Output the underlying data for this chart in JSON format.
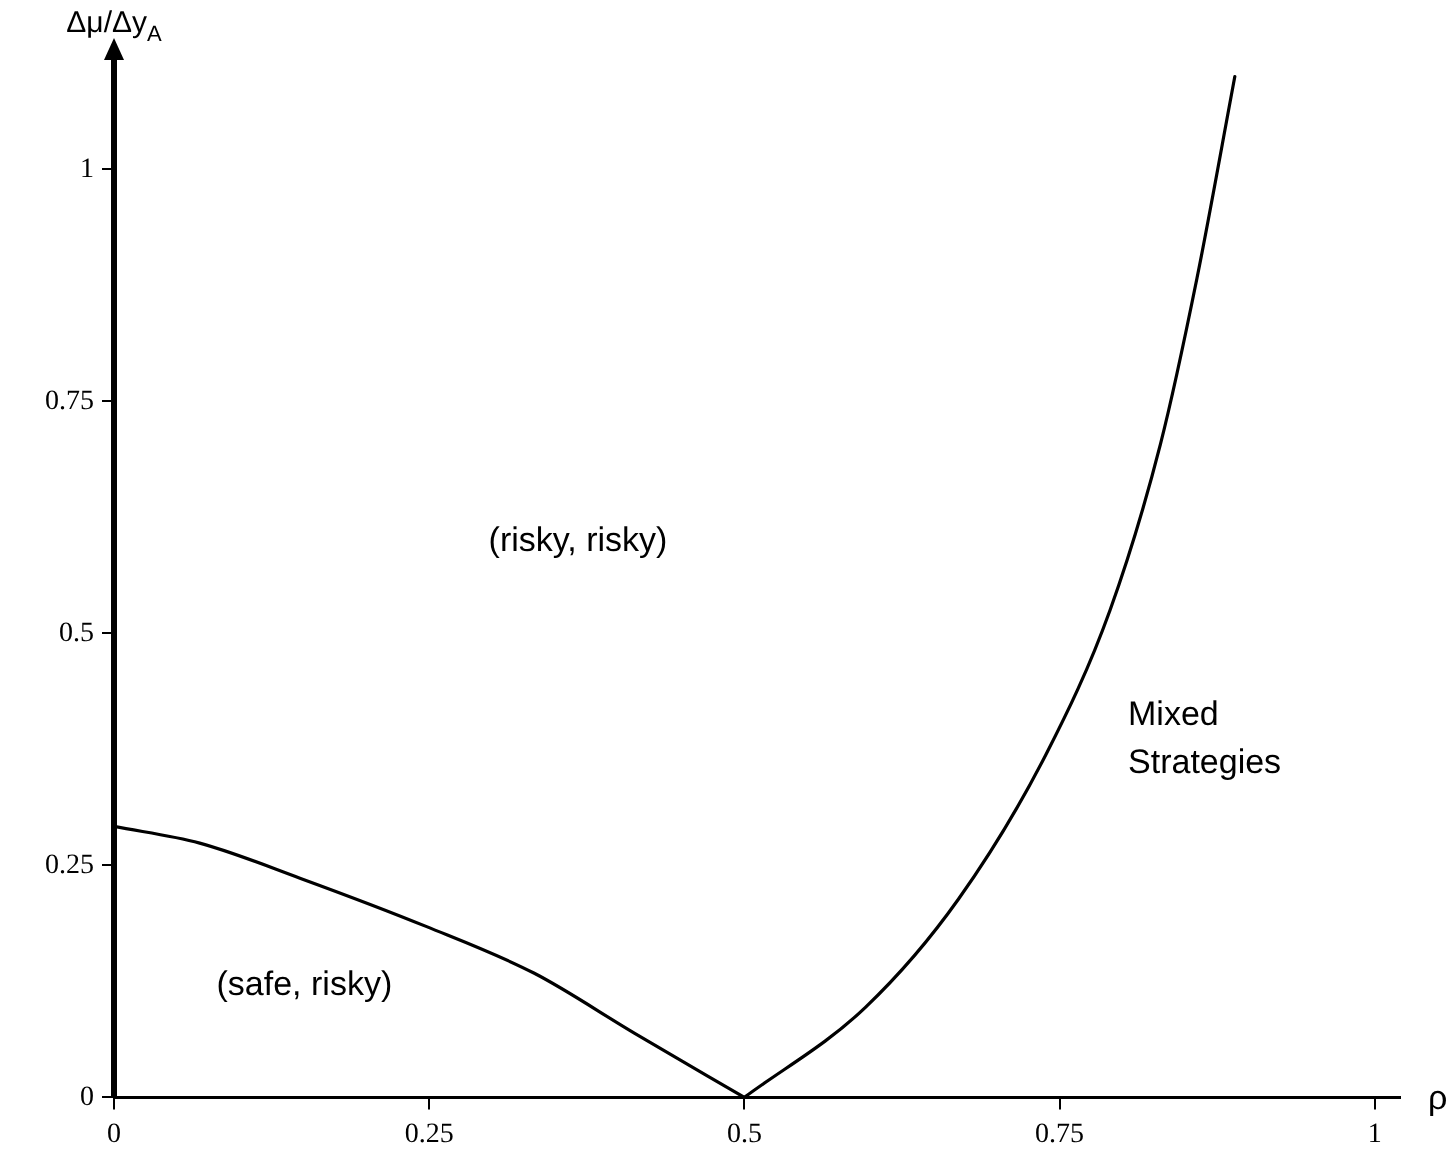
{
  "chart_data": {
    "type": "line",
    "xlabel": "ρ",
    "ylabel": "Δμ/Δy$_{A}$",
    "xlim": [
      0,
      1.02
    ],
    "ylim": [
      0,
      1.12
    ],
    "xticks": [
      0,
      0.25,
      0.5,
      0.75,
      1
    ],
    "yticks": [
      0,
      0.25,
      0.5,
      0.75,
      1
    ],
    "grid": false,
    "legend": false,
    "marker": "none",
    "line_style": "solid",
    "series": [
      {
        "color": "#000000",
        "x": [
          0,
          0.068,
          0.148,
          0.248,
          0.333,
          0.413,
          0.5
        ],
        "values": [
          0.292,
          0.274,
          0.236,
          0.184,
          0.134,
          0.069,
          0
        ]
      },
      {
        "color": "#000000",
        "x": [
          0.5,
          0.596,
          0.67,
          0.739,
          0.79,
          0.83,
          0.859,
          0.889
        ],
        "values": [
          0,
          0.097,
          0.214,
          0.369,
          0.525,
          0.704,
          0.883,
          1.1
        ]
      }
    ],
    "annotations": [
      "(risky, risky)",
      "(safe, risky)",
      "Mixed Strategies"
    ]
  }
}
